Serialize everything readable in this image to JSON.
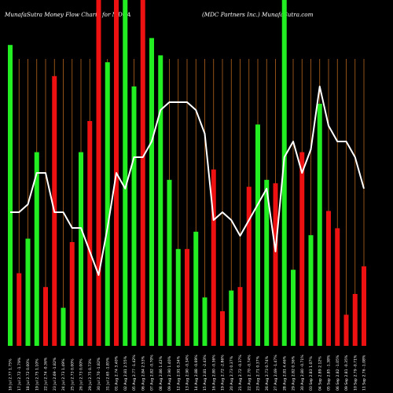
{
  "chart_data": {
    "type": "bar",
    "title_left": "MunafaSutra  Money Flow  Charts for MDCA",
    "title_right": "(MDC Partners Inc.) MunafaSutra.com",
    "colors": {
      "background": "#000000",
      "up": "#22ee22",
      "down": "#ee1111",
      "line": "#ffffff",
      "grid": "#b5651d"
    },
    "categories": [
      "16 Jul 2.77 1.75%",
      "17 Jul 2.72 -1.79%",
      "18 Jul 2.72 0.00%",
      "19 Jul 2.75 1.10%",
      "22 Jul 2.74 -0.36%",
      "23 Jul 2.69 -1.82%",
      "24 Jul 2.73 1.49%",
      "25 Jul 2.73 0.00%",
      "26 Jul 2.73 0.00%",
      "29 Jul 2.75 0.73%",
      "30 Jul 2.70 -1.82%",
      "31 Jul 2.65 -1.85%",
      "01 Aug 2.74 3.40%",
      "02 Aug 2.81 2.55%",
      "05 Aug 2.77 -1.42%",
      "06 Aug 2.84 2.53%",
      "07 Aug 2.82 -0.70%",
      "08 Aug 2.86 1.42%",
      "09 Aug 2.90 1.40%",
      "12 Aug 2.91 0.34%",
      "13 Aug 2.90 -0.34%",
      "14 Aug 2.88 -0.69%",
      "15 Aug 2.81 -2.43%",
      "16 Aug 2.80 -0.36%",
      "19 Aug 2.72 -2.86%",
      "20 Aug 2.73 0.37%",
      "21 Aug 2.72 -0.37%",
      "22 Aug 2.70 -0.74%",
      "23 Aug 2.71 0.37%",
      "26 Aug 2.73 0.74%",
      "27 Aug 2.69 -1.47%",
      "28 Aug 2.81 4.46%",
      "29 Aug 2.82 0.36%",
      "30 Aug 2.80 -0.71%",
      "03 Sep 2.83 1.07%",
      "04 Sep 2.89 2.12%",
      "05 Sep 2.85 -1.38%",
      "06 Sep 2.82 -1.05%",
      "09 Sep 2.81 -0.35%",
      "10 Sep 2.79 -0.71%",
      "11 Sep 2.76 -1.08%"
    ],
    "bar_directions": [
      "up",
      "down",
      "up",
      "up",
      "down",
      "down",
      "up",
      "down",
      "up",
      "down",
      "down",
      "up",
      "down",
      "up",
      "up",
      "down",
      "up",
      "up",
      "up",
      "up",
      "down",
      "up",
      "up",
      "down",
      "down",
      "up",
      "down",
      "down",
      "up",
      "up",
      "down",
      "up",
      "up",
      "down",
      "up",
      "up",
      "down",
      "down",
      "down",
      "down",
      "down"
    ],
    "bar_values": [
      87,
      21,
      31,
      56,
      17,
      78,
      11,
      30,
      56,
      65,
      100,
      82,
      100,
      100,
      75,
      100,
      89,
      84,
      48,
      28,
      28,
      33,
      14,
      51,
      10,
      16,
      17,
      46,
      64,
      48,
      47,
      100,
      22,
      56,
      32,
      70,
      39,
      34,
      9,
      15,
      23
    ],
    "price_line": [
      2.77,
      2.77,
      2.78,
      2.82,
      2.82,
      2.77,
      2.77,
      2.75,
      2.75,
      2.72,
      2.69,
      2.75,
      2.82,
      2.8,
      2.84,
      2.84,
      2.86,
      2.9,
      2.91,
      2.91,
      2.91,
      2.9,
      2.87,
      2.76,
      2.77,
      2.76,
      2.74,
      2.76,
      2.78,
      2.8,
      2.72,
      2.84,
      2.86,
      2.82,
      2.85,
      2.93,
      2.88,
      2.86,
      2.86,
      2.84,
      2.8
    ],
    "price_range": [
      2.6,
      3.0
    ],
    "ylim": [
      0,
      100
    ],
    "grid": "vertical"
  }
}
